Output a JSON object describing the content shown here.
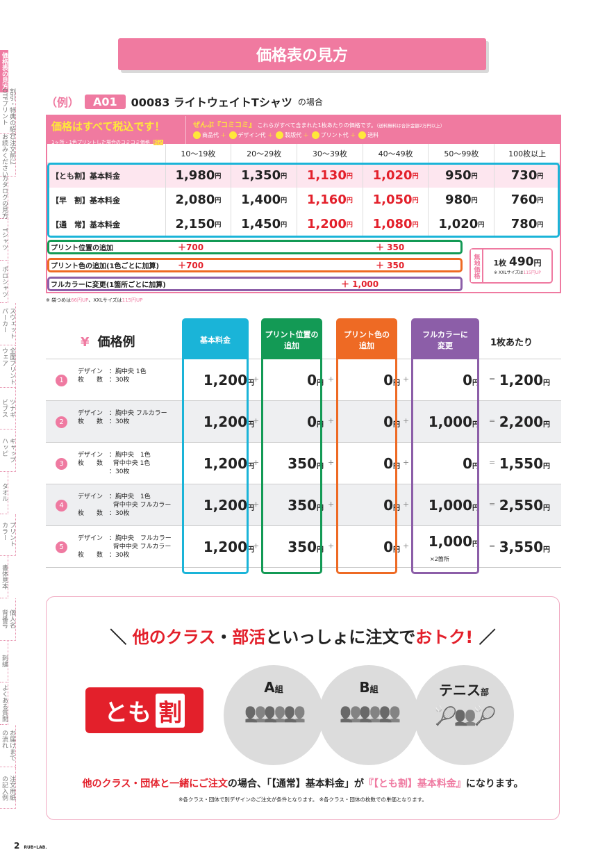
{
  "sidebar": [
    "価格表の見方",
    "割引・特典の紹介\nDTFプリント",
    "ご注文前に\nお読みください",
    "カタログの見方",
    "Tシャツ",
    "ポロシャツ",
    "スウェット\nパーカー",
    "全面プリント\nウェア",
    "ツナギ\nビブス",
    "キャップ\nハッピ",
    "タオル",
    "プリント\nカラー",
    "書体見本",
    "個人名\n背番号",
    "刺繍",
    "よくある質問",
    "お届けまで\nの流れ",
    "注文用紙\nの記入例"
  ],
  "banner": "価格表の見方",
  "example": {
    "prefix": "（例）",
    "code": "A01",
    "item": "00083 ライトウェイトTシャツ",
    "suffix": "の場合"
  },
  "price_table": {
    "tax_title": "価格はすべて税込です！",
    "tax_sub": "1ヶ所・1色プリントした場合のコミコミ価格",
    "tax_badge": "税込",
    "komi_title": "ぜんぶ『コミコミ』",
    "komi_text": "これらがすべて含まれた1枚あたりの価格です。",
    "komi_note": "（送料無料は合計金額2万円以上）",
    "components": [
      "商品代",
      "デザイン代",
      "製版代",
      "プリント代",
      "送料"
    ],
    "columns": [
      "10〜19枚",
      "20〜29枚",
      "30〜39枚",
      "40〜49枚",
      "50〜99枚",
      "100枚以上"
    ],
    "rows": [
      {
        "label": "【とも割】基本料金",
        "values": [
          "1,980",
          "1,350",
          "1,130",
          "1,020",
          "950",
          "730"
        ]
      },
      {
        "label": "【早　割】基本料金",
        "values": [
          "2,080",
          "1,400",
          "1,160",
          "1,050",
          "980",
          "760"
        ]
      },
      {
        "label": "【通　常】基本料金",
        "values": [
          "2,150",
          "1,450",
          "1,200",
          "1,080",
          "1,020",
          "780"
        ]
      }
    ],
    "yen": "円",
    "addons": [
      {
        "label": "プリント位置の追加",
        "first": "＋700",
        "rest": "＋ 350"
      },
      {
        "label": "プリント色の追加(1色ごとに加算)",
        "first": "＋700",
        "rest": "＋ 350"
      },
      {
        "label": "フルカラーに変更(1箇所ごとに加算)",
        "all": "＋ 1,000"
      }
    ],
    "muji": {
      "label": "無地価格",
      "count": "1枚",
      "price": "490",
      "note_a": "※ XXLサイズは",
      "note_b": "115円UP"
    },
    "note": {
      "a": "※ 袋つめは",
      "b": "66円UP",
      "c": "、XXLサイズは",
      "d": "115円UP"
    }
  },
  "examples": {
    "title": "価格例",
    "yen_icon": "¥",
    "headers": [
      "基本料金",
      "プリント位置の\n追加",
      "プリント色の\n追加",
      "フルカラーに\n変更"
    ],
    "per": "1枚あたり",
    "colors": [
      "#1ab4d8",
      "#139a55",
      "#ee6a24",
      "#8c5ea8"
    ],
    "rows": [
      {
        "n": "1",
        "desc": "デザイン　：胸中央 1色\n枚　　数　：30枚",
        "vals": [
          "1,200",
          "0",
          "0",
          "0"
        ],
        "total": "1,200"
      },
      {
        "n": "2",
        "desc": "デザイン　：胸中央 フルカラー\n枚　　数　：30枚",
        "vals": [
          "1,200",
          "0",
          "0",
          "1,000"
        ],
        "total": "2,200"
      },
      {
        "n": "3",
        "desc": "デザイン　：胸中央　1色\n枚　　数　  背中中央 1色\n　　　　　：30枚",
        "vals": [
          "1,200",
          "350",
          "0",
          "0"
        ],
        "total": "1,550"
      },
      {
        "n": "4",
        "desc": "デザイン　：胸中央　1色\n　　　　　  背中中央 フルカラー\n枚　　数　：30枚",
        "vals": [
          "1,200",
          "350",
          "0",
          "1,000"
        ],
        "total": "2,550"
      },
      {
        "n": "5",
        "desc": "デザイン　：胸中央　フルカラー\n　　　　　  背中中央 フルカラー\n枚　　数　：30枚",
        "vals": [
          "1,200",
          "350",
          "0",
          "1,000"
        ],
        "total": "3,550",
        "sub": "×2箇所"
      }
    ]
  },
  "tomowari": {
    "headline": {
      "a": "他のクラス",
      "b": "・",
      "c": "部活",
      "d": "といっしょに注文で",
      "e": "おトク!"
    },
    "badge_a": "とも",
    "badge_b": "割",
    "groups": [
      {
        "name": "A",
        "unit": "組"
      },
      {
        "name": "B",
        "unit": "組"
      },
      {
        "name": "テニス",
        "unit": "部"
      }
    ],
    "line": {
      "a": "他のクラス・団体と一緒にご注文",
      "b": "の場合、「【通常】基本料金」が",
      "c": "『【とも割】基本料金』",
      "d": "になります。"
    },
    "note": "※各クラス・団体で別デザインのご注文が条件となります。 ※各クラス・団体の枚数での単価となります。"
  },
  "footer": {
    "page": "2",
    "brand": "RUB•LAB."
  }
}
